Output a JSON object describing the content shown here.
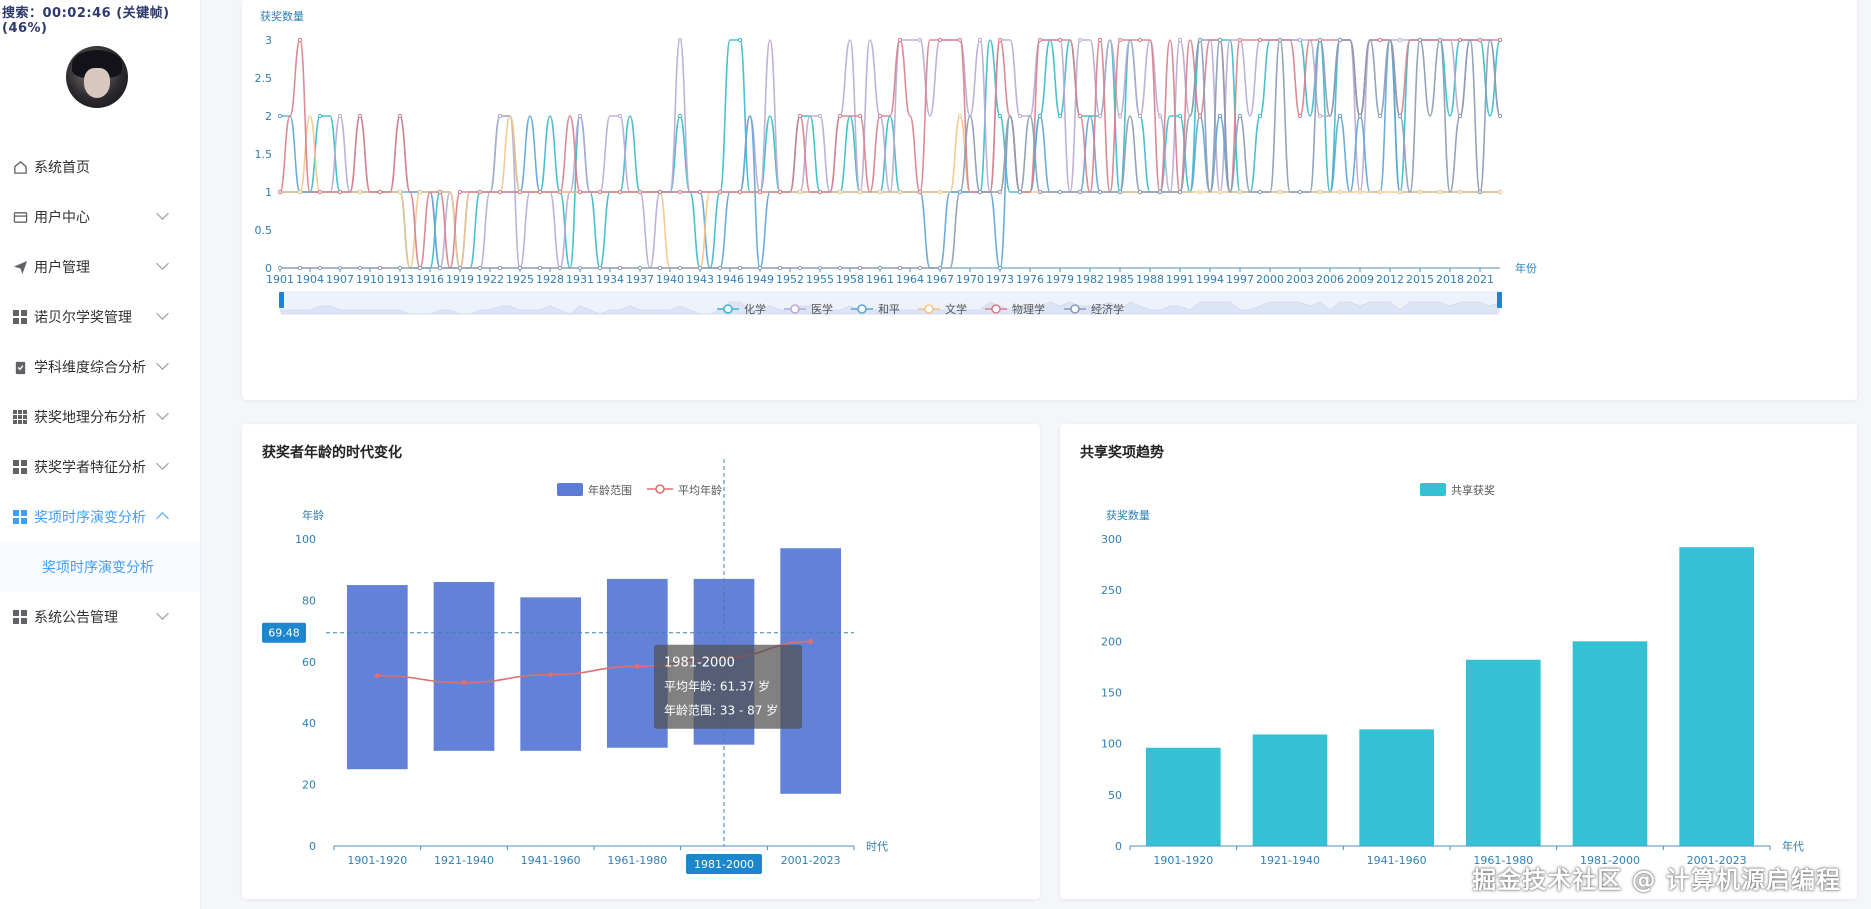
{
  "recording": "搜索：00:02:46 (关键帧) (46%)",
  "sidebar": {
    "items": [
      {
        "label": "系统首页",
        "icon": "home-icon"
      },
      {
        "label": "用户中心",
        "icon": "card-icon",
        "arrow": "down"
      },
      {
        "label": "用户管理",
        "icon": "send-icon",
        "arrow": "down"
      },
      {
        "label": "诺贝尔学奖管理",
        "icon": "grid-icon",
        "arrow": "down"
      },
      {
        "label": "学科维度综合分析",
        "icon": "clipboard-icon",
        "arrow": "down"
      },
      {
        "label": "获奖地理分布分析",
        "icon": "grid9-icon",
        "arrow": "down"
      },
      {
        "label": "获奖学者特征分析",
        "icon": "grid-icon",
        "arrow": "down"
      },
      {
        "label": "奖项时序演变分析",
        "icon": "grid-icon",
        "arrow": "up",
        "active": true
      },
      {
        "label": "奖项时序演变分析",
        "sub": true
      },
      {
        "label": "系统公告管理",
        "icon": "grid-icon",
        "arrow": "down"
      }
    ]
  },
  "watermark": "掘金技术社区 @ 计算机源启编程",
  "chart_data": [
    {
      "type": "line",
      "ylabel": "获奖数量",
      "xlabel": "年份",
      "ylim": [
        0,
        3
      ],
      "yticks": [
        "0",
        "0.5",
        "1",
        "1.5",
        "2",
        "2.5",
        "3"
      ],
      "xticks": [
        "1901",
        "1904",
        "1907",
        "1910",
        "1913",
        "1916",
        "1919",
        "1922",
        "1925",
        "1928",
        "1931",
        "1934",
        "1937",
        "1940",
        "1943",
        "1946",
        "1949",
        "1952",
        "1955",
        "1958",
        "1961",
        "1964",
        "1967",
        "1970",
        "1973",
        "1976",
        "1979",
        "1982",
        "1985",
        "1988",
        "1991",
        "1994",
        "1997",
        "2000",
        "2003",
        "2006",
        "2009",
        "2012",
        "2015",
        "2018",
        "2021"
      ],
      "x_range": [
        1901,
        2023
      ],
      "series": [
        {
          "name": "化学",
          "color": "#37b9c9",
          "values": [
            1,
            1,
            1,
            1,
            2,
            2,
            1,
            1,
            1,
            1,
            1,
            1,
            1,
            0,
            0,
            0,
            1,
            1,
            0,
            0,
            1,
            1,
            2,
            2,
            1,
            1,
            1,
            2,
            1,
            0,
            2,
            1,
            0,
            1,
            1,
            2,
            1,
            1,
            1,
            1,
            2,
            1,
            0,
            0,
            1,
            3,
            3,
            1,
            1,
            2,
            1,
            1,
            2,
            2,
            1,
            1,
            1,
            2,
            1,
            1,
            1,
            2,
            1,
            1,
            1,
            1,
            1,
            1,
            1,
            1,
            1,
            3,
            2,
            1,
            1,
            1,
            2,
            3,
            2,
            3,
            2,
            2,
            2,
            3,
            1,
            3,
            2,
            1,
            1,
            2,
            2,
            1,
            3,
            3,
            3,
            3,
            1,
            1,
            2,
            3,
            3,
            3,
            3,
            2,
            3,
            1,
            3,
            3,
            2,
            3,
            3,
            3,
            1,
            3,
            3,
            3,
            3,
            2,
            3,
            3,
            3,
            2,
            3
          ]
        },
        {
          "name": "医学",
          "color": "#b9a8d1",
          "values": [
            1,
            1,
            1,
            1,
            1,
            1,
            2,
            1,
            2,
            1,
            1,
            1,
            2,
            1,
            1,
            1,
            0,
            1,
            0,
            0,
            0,
            1,
            2,
            2,
            0,
            1,
            1,
            1,
            0,
            1,
            2,
            1,
            1,
            2,
            2,
            1,
            1,
            0,
            1,
            1,
            3,
            1,
            1,
            1,
            1,
            1,
            1,
            2,
            1,
            3,
            1,
            1,
            1,
            2,
            2,
            1,
            2,
            3,
            1,
            3,
            2,
            1,
            3,
            3,
            3,
            2,
            3,
            3,
            3,
            2,
            3,
            1,
            3,
            3,
            2,
            2,
            3,
            3,
            3,
            1,
            3,
            3,
            2,
            3,
            2,
            3,
            2,
            3,
            2,
            1,
            3,
            2,
            3,
            3,
            1,
            3,
            3,
            2,
            3,
            3,
            3,
            3,
            3,
            3,
            2,
            2,
            3,
            3,
            1,
            3,
            3,
            3,
            3,
            3,
            3,
            3,
            3,
            3,
            2,
            3,
            3,
            3,
            2
          ]
        },
        {
          "name": "和平",
          "color": "#5ea4d6",
          "values": [
            2,
            2,
            1,
            1,
            1,
            1,
            1,
            1,
            1,
            1,
            1,
            1,
            1,
            1,
            1,
            1,
            0,
            0,
            0,
            1,
            1,
            1,
            1,
            1,
            1,
            2,
            1,
            1,
            1,
            1,
            1,
            1,
            1,
            1,
            1,
            1,
            1,
            1,
            1,
            1,
            1,
            1,
            1,
            0,
            0,
            1,
            1,
            2,
            0,
            1,
            1,
            1,
            1,
            1,
            1,
            1,
            1,
            1,
            1,
            1,
            1,
            1,
            1,
            1,
            1,
            0,
            0,
            1,
            1,
            1,
            1,
            1,
            0,
            2,
            1,
            1,
            2,
            1,
            1,
            1,
            1,
            2,
            1,
            1,
            1,
            1,
            1,
            1,
            1,
            1,
            1,
            1,
            2,
            1,
            2,
            1,
            1,
            1,
            1,
            1,
            1,
            1,
            1,
            1,
            1,
            1,
            2,
            1,
            2,
            1,
            1,
            3,
            1,
            1,
            1,
            1,
            1,
            1,
            1,
            1,
            1,
            1,
            1
          ]
        },
        {
          "name": "文学",
          "color": "#f3c587",
          "values": [
            1,
            1,
            1,
            2,
            1,
            1,
            1,
            1,
            1,
            1,
            1,
            1,
            1,
            0,
            1,
            1,
            1,
            1,
            0,
            1,
            1,
            1,
            1,
            2,
            1,
            1,
            1,
            1,
            1,
            1,
            1,
            1,
            1,
            1,
            1,
            1,
            1,
            1,
            1,
            0,
            0,
            0,
            0,
            1,
            1,
            1,
            1,
            1,
            1,
            1,
            1,
            1,
            1,
            1,
            1,
            1,
            1,
            1,
            1,
            1,
            1,
            1,
            1,
            1,
            1,
            1,
            1,
            1,
            2,
            1,
            1,
            1,
            1,
            2,
            1,
            1,
            1,
            1,
            1,
            1,
            1,
            1,
            1,
            1,
            1,
            1,
            1,
            1,
            1,
            1,
            1,
            1,
            1,
            1,
            1,
            1,
            1,
            1,
            1,
            1,
            1,
            1,
            1,
            1,
            1,
            1,
            1,
            1,
            1,
            1,
            1,
            1,
            1,
            1,
            1,
            1,
            1,
            1,
            1,
            1,
            1,
            1,
            1
          ]
        },
        {
          "name": "物理学",
          "color": "#d77f8c",
          "values": [
            1,
            2,
            3,
            1,
            1,
            1,
            1,
            1,
            2,
            1,
            1,
            1,
            2,
            1,
            0,
            1,
            1,
            0,
            1,
            1,
            1,
            1,
            1,
            1,
            1,
            1,
            1,
            1,
            1,
            2,
            1,
            1,
            1,
            1,
            1,
            1,
            1,
            1,
            1,
            1,
            1,
            1,
            1,
            1,
            1,
            1,
            1,
            1,
            1,
            1,
            1,
            1,
            2,
            1,
            1,
            1,
            2,
            2,
            2,
            1,
            2,
            2,
            3,
            2,
            1,
            3,
            3,
            3,
            3,
            1,
            1,
            1,
            3,
            2,
            1,
            1,
            3,
            3,
            3,
            3,
            2,
            1,
            3,
            1,
            3,
            3,
            3,
            3,
            1,
            3,
            1,
            3,
            2,
            3,
            3,
            1,
            3,
            3,
            3,
            3,
            3,
            3,
            2,
            3,
            3,
            3,
            3,
            3,
            2,
            3,
            3,
            3,
            2,
            3,
            3,
            3,
            3,
            3,
            3,
            3,
            3,
            3,
            3
          ]
        },
        {
          "name": "经济学",
          "color": "#8b9bb4",
          "values": [
            0,
            0,
            0,
            0,
            0,
            0,
            0,
            0,
            0,
            0,
            0,
            0,
            0,
            0,
            0,
            0,
            0,
            0,
            0,
            0,
            0,
            0,
            0,
            0,
            0,
            0,
            0,
            0,
            0,
            0,
            0,
            0,
            0,
            0,
            0,
            0,
            0,
            0,
            0,
            0,
            0,
            0,
            0,
            0,
            0,
            0,
            0,
            0,
            0,
            0,
            0,
            0,
            0,
            0,
            0,
            0,
            0,
            0,
            0,
            0,
            0,
            0,
            0,
            0,
            0,
            0,
            0,
            0,
            1,
            2,
            1,
            1,
            1,
            2,
            1,
            2,
            1,
            1,
            1,
            1,
            1,
            1,
            1,
            1,
            1,
            2,
            1,
            1,
            1,
            1,
            1,
            2,
            3,
            1,
            3,
            1,
            2,
            1,
            1,
            1,
            3,
            1,
            1,
            1,
            3,
            2,
            3,
            3,
            2,
            3,
            2,
            3,
            2,
            1,
            3,
            2,
            3,
            1,
            2,
            3,
            1,
            3,
            2
          ]
        }
      ]
    },
    {
      "type": "bar",
      "title": "获奖者年龄的时代变化",
      "ylabel": "年龄",
      "xlabel": "时代",
      "ylim": [
        0,
        100
      ],
      "yticks": [
        "0",
        "20",
        "40",
        "60",
        "80",
        "100"
      ],
      "categories": [
        "1901-1920",
        "1921-1940",
        "1941-1960",
        "1961-1980",
        "1981-2000",
        "2001-2023"
      ],
      "series": [
        {
          "name": "年龄范围",
          "color": "#5b7bd5",
          "low": [
            25,
            31,
            31,
            32,
            33,
            17
          ],
          "high": [
            85,
            86,
            81,
            87,
            87,
            97
          ]
        },
        {
          "name": "平均年龄",
          "color": "#e06f6f",
          "values": [
            55.5,
            53.2,
            55.8,
            58.5,
            61.37,
            66.6
          ]
        }
      ],
      "crosshair": {
        "value": "69.48",
        "category": "1981-2000"
      },
      "tooltip": {
        "title": "1981-2000",
        "line1": "平均年龄: 61.37 岁",
        "line2": "年龄范围: 33 - 87 岁"
      }
    },
    {
      "type": "bar",
      "title": "共享奖项趋势",
      "ylabel": "获奖数量",
      "xlabel": "年代",
      "ylim": [
        0,
        300
      ],
      "yticks": [
        "0",
        "50",
        "100",
        "150",
        "200",
        "250",
        "300"
      ],
      "categories": [
        "1901-1920",
        "1921-1940",
        "1941-1960",
        "1961-1980",
        "1981-2000",
        "2001-2023"
      ],
      "series": [
        {
          "name": "共享获奖",
          "color": "#36c0d3",
          "values": [
            96,
            109,
            114,
            182,
            200,
            292
          ]
        }
      ]
    }
  ]
}
